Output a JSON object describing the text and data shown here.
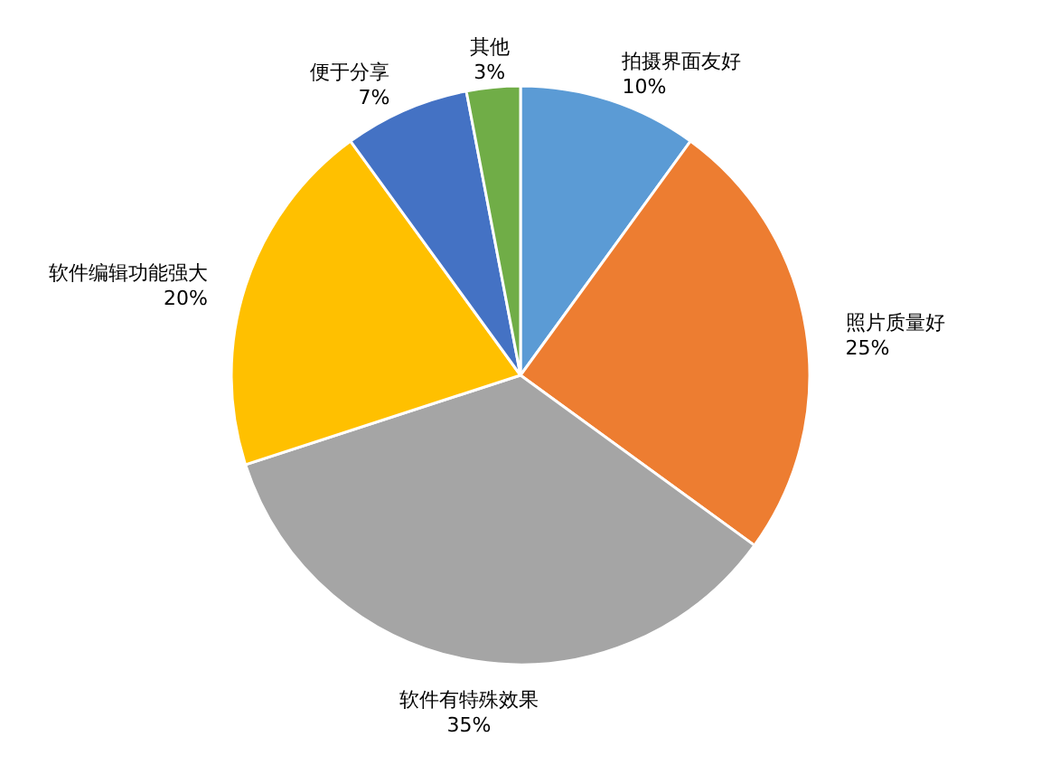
{
  "chart_data": {
    "type": "pie",
    "categories": [
      "拍摄界面友好",
      "照片质量好",
      "软件有特殊效果",
      "软件编辑功能强大",
      "便于分享",
      "其他"
    ],
    "values": [
      10,
      25,
      35,
      20,
      7,
      3
    ],
    "colors": [
      "#5b9bd5",
      "#ed7d31",
      "#a5a5a5",
      "#ffc000",
      "#4472c4",
      "#70ad47"
    ],
    "value_labels": [
      "10%",
      "25%",
      "35%",
      "20%",
      "7%",
      "3%"
    ]
  }
}
